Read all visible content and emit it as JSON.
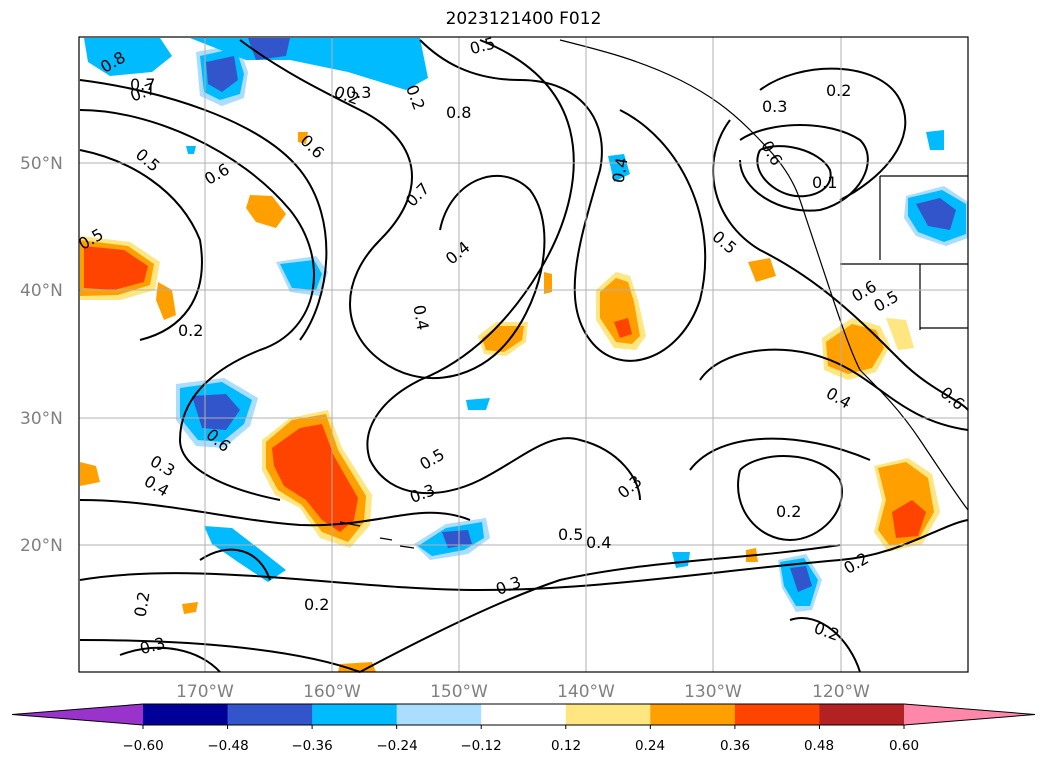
{
  "title": "2023121400 F012",
  "lat_labels": [
    "50°N",
    "40°N",
    "30°N",
    "20°N"
  ],
  "lon_labels": [
    "170°W",
    "160°W",
    "150°W",
    "140°W",
    "130°W",
    "120°W"
  ],
  "colorbar": {
    "ticks": [
      "−0.60",
      "−0.48",
      "−0.36",
      "−0.24",
      "−0.12",
      "0.12",
      "0.24",
      "0.36",
      "0.48",
      "0.60"
    ],
    "colors": [
      "#9933cc",
      "#000099",
      "#3355cc",
      "#00bbff",
      "#aaddff",
      "#ffffff",
      "#ffe680",
      "#ffa000",
      "#ff4400",
      "#b22222",
      "#ff88aa"
    ]
  },
  "contour_labels": [
    "0.8",
    "0.7",
    "0.5",
    "0.6",
    "0.5",
    "0.2",
    "0.6",
    "0.2",
    "0.5",
    "0.8",
    "0.7",
    "0.4",
    "0.4",
    "0.4",
    "0.3",
    "0.6",
    "0.1",
    "0.2",
    "0.5",
    "0.6",
    "0.5",
    "0.4",
    "0.6",
    "0.2",
    "0.3",
    "0.4",
    "0.3",
    "0.5",
    "0.3",
    "0.3",
    "0.5",
    "0.4",
    "0.2",
    "0.2",
    "0.3",
    "0.2",
    "0.2",
    "0.3",
    "0.2",
    "0.6",
    "0.7"
  ]
}
